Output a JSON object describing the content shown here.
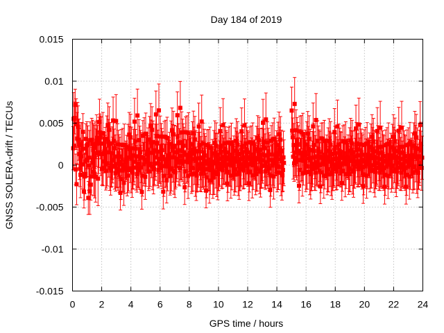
{
  "chart_data": {
    "type": "scatter",
    "title": "Day 184 of 2019",
    "xlabel": "GPS time / hours",
    "ylabel": "GNSS SOLERA-drift / TECUs",
    "xlim": [
      0,
      24
    ],
    "ylim": [
      -0.015,
      0.015
    ],
    "xticks": [
      "0",
      "2",
      "4",
      "6",
      "8",
      "10",
      "12",
      "14",
      "16",
      "18",
      "20",
      "22",
      "24"
    ],
    "yticks": [
      "-0.015",
      "-0.01",
      "-0.005",
      "0",
      "0.005",
      "0.01",
      "0.015"
    ],
    "grid": true,
    "marker": "filled-square",
    "error_bars": true,
    "series_color": "#ff0000",
    "gap": [
      14.5,
      15.0
    ],
    "series": [
      {
        "x": [
          0.0,
          0.5,
          1.0,
          1.5,
          2.0,
          2.5,
          3.0,
          3.5,
          4.0,
          4.5,
          5.0,
          5.5,
          6.0,
          6.5,
          7.0,
          7.5,
          8.0,
          8.5,
          9.0,
          9.5,
          10.0,
          10.5,
          11.0,
          11.5,
          12.0,
          12.5,
          13.0,
          13.5,
          14.0,
          14.4,
          15.1,
          15.5,
          16.0,
          16.5,
          17.0,
          17.5,
          18.0,
          18.5,
          19.0,
          19.5,
          20.0,
          20.5,
          21.0,
          21.5,
          22.0,
          22.5,
          23.0,
          23.5,
          24.0
        ],
        "y": [
          0.0015,
          0.001,
          0.0005,
          0.0,
          0.0005,
          0.001,
          0.0,
          -0.0005,
          0.0005,
          0.0,
          0.0005,
          0.001,
          0.0005,
          0.0,
          0.0005,
          0.001,
          0.0005,
          0.0,
          0.0,
          -0.0005,
          0.0,
          0.0005,
          0.0,
          0.0,
          0.0005,
          0.0,
          0.0005,
          0.0,
          0.0005,
          0.0,
          0.0015,
          0.001,
          0.0005,
          0.0,
          0.0005,
          0.0,
          0.0,
          0.0005,
          0.0,
          0.0005,
          0.0,
          0.0005,
          0.0,
          0.0,
          0.0005,
          0.0,
          0.0,
          0.0005,
          0.0
        ],
        "spread": [
          0.0045,
          0.0045,
          0.004,
          0.004,
          0.004,
          0.004,
          0.0035,
          0.0035,
          0.0035,
          0.004,
          0.004,
          0.004,
          0.004,
          0.004,
          0.004,
          0.004,
          0.004,
          0.0035,
          0.0035,
          0.003,
          0.003,
          0.003,
          0.003,
          0.003,
          0.003,
          0.003,
          0.0035,
          0.0035,
          0.0035,
          0.0035,
          0.004,
          0.004,
          0.0035,
          0.0035,
          0.0035,
          0.003,
          0.003,
          0.003,
          0.003,
          0.003,
          0.003,
          0.003,
          0.003,
          0.003,
          0.003,
          0.003,
          0.003,
          0.0035,
          0.0035
        ],
        "error_bar": [
          0.0025,
          0.0025,
          0.0025,
          0.0025,
          0.0025,
          0.0025,
          0.0025,
          0.0025,
          0.0025,
          0.0025,
          0.0025,
          0.0025,
          0.0025,
          0.0025,
          0.0025,
          0.0025,
          0.0025,
          0.0025,
          0.0025,
          0.0025,
          0.0025,
          0.0025,
          0.0025,
          0.0025,
          0.0025,
          0.0025,
          0.0025,
          0.0025,
          0.0025,
          0.0025,
          0.0025,
          0.0025,
          0.0025,
          0.0025,
          0.0025,
          0.0025,
          0.0025,
          0.0025,
          0.0025,
          0.0025,
          0.0025,
          0.0025,
          0.0025,
          0.0025,
          0.0025,
          0.0025,
          0.0025,
          0.0025,
          0.0025
        ]
      }
    ]
  }
}
